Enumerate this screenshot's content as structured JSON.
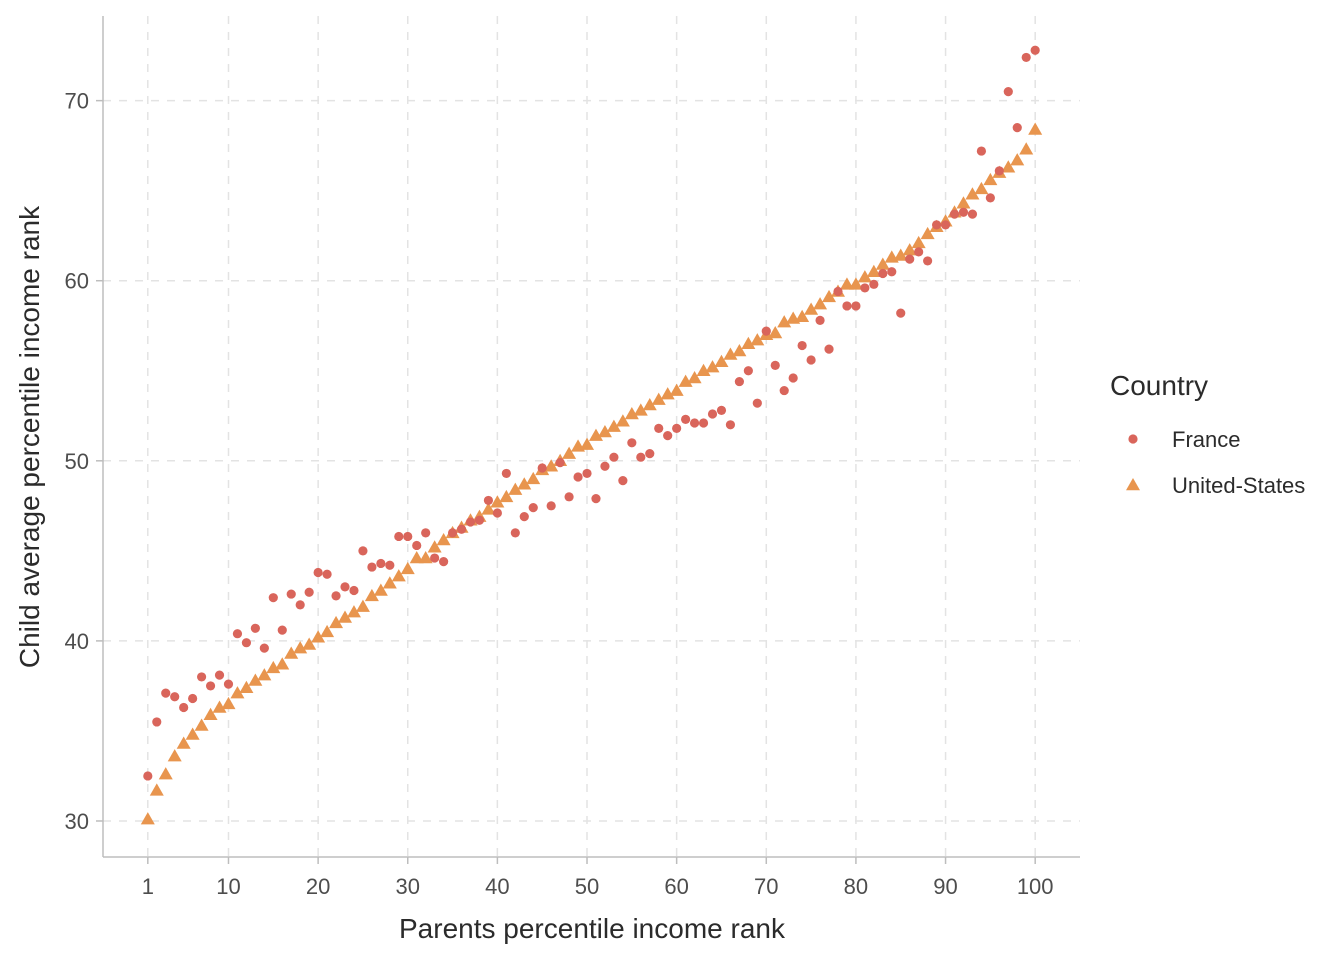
{
  "chart_data": {
    "type": "scatter",
    "title": "",
    "xlabel": "Parents percentile income rank",
    "ylabel": "Child average percentile income rank",
    "xlim": [
      -4,
      105
    ],
    "ylim": [
      28,
      74.7
    ],
    "x_ticks": [
      1,
      10,
      20,
      30,
      40,
      50,
      60,
      70,
      80,
      90,
      100
    ],
    "y_ticks": [
      30,
      40,
      50,
      60,
      70
    ],
    "grid": true,
    "legend": {
      "title": "Country",
      "position": "right"
    },
    "series": [
      {
        "name": "France",
        "marker": "circle",
        "color": "#D9655B",
        "x": [
          1,
          2,
          3,
          4,
          5,
          6,
          7,
          8,
          9,
          10,
          11,
          12,
          13,
          14,
          15,
          16,
          17,
          18,
          19,
          20,
          21,
          22,
          23,
          24,
          25,
          26,
          27,
          28,
          29,
          30,
          31,
          32,
          33,
          34,
          35,
          36,
          37,
          38,
          39,
          40,
          41,
          42,
          43,
          44,
          45,
          46,
          47,
          48,
          49,
          50,
          51,
          52,
          53,
          54,
          55,
          56,
          57,
          58,
          59,
          60,
          61,
          62,
          63,
          64,
          65,
          66,
          67,
          68,
          69,
          70,
          71,
          72,
          73,
          74,
          75,
          76,
          77,
          78,
          79,
          80,
          81,
          82,
          83,
          84,
          85,
          86,
          87,
          88,
          89,
          90,
          91,
          92,
          93,
          94,
          95,
          96,
          97,
          98,
          99,
          100
        ],
        "y": [
          32.5,
          35.5,
          37.1,
          36.9,
          36.3,
          36.8,
          38.0,
          37.5,
          38.1,
          37.6,
          40.4,
          39.9,
          40.7,
          39.6,
          42.4,
          40.6,
          42.6,
          42.0,
          42.7,
          43.8,
          43.7,
          42.5,
          43.0,
          42.8,
          45.0,
          44.1,
          44.3,
          44.2,
          45.8,
          45.8,
          45.3,
          46.0,
          44.6,
          44.4,
          46.0,
          46.2,
          46.6,
          46.7,
          47.8,
          47.1,
          49.3,
          46.0,
          46.9,
          47.4,
          49.6,
          47.5,
          49.9,
          48.0,
          49.1,
          49.3,
          47.9,
          49.7,
          50.2,
          48.9,
          51.0,
          50.2,
          50.4,
          51.8,
          51.4,
          51.8,
          52.3,
          52.1,
          52.1,
          52.6,
          52.8,
          52.0,
          54.4,
          55.0,
          53.2,
          57.2,
          55.3,
          53.9,
          54.6,
          56.4,
          55.6,
          57.8,
          56.2,
          59.4,
          58.6,
          58.6,
          59.6,
          59.8,
          60.4,
          60.5,
          58.2,
          61.2,
          61.6,
          61.1,
          63.1,
          63.1,
          63.7,
          63.8,
          63.7,
          67.2,
          64.6,
          66.1,
          70.5,
          68.5,
          72.4,
          72.8
        ]
      },
      {
        "name": "United-States",
        "marker": "triangle",
        "color": "#E8954E",
        "x": [
          1,
          2,
          3,
          4,
          5,
          6,
          7,
          8,
          9,
          10,
          11,
          12,
          13,
          14,
          15,
          16,
          17,
          18,
          19,
          20,
          21,
          22,
          23,
          24,
          25,
          26,
          27,
          28,
          29,
          30,
          31,
          32,
          33,
          34,
          35,
          36,
          37,
          38,
          39,
          40,
          41,
          42,
          43,
          44,
          45,
          46,
          47,
          48,
          49,
          50,
          51,
          52,
          53,
          54,
          55,
          56,
          57,
          58,
          59,
          60,
          61,
          62,
          63,
          64,
          65,
          66,
          67,
          68,
          69,
          70,
          71,
          72,
          73,
          74,
          75,
          76,
          77,
          78,
          79,
          80,
          81,
          82,
          83,
          84,
          85,
          86,
          87,
          88,
          89,
          90,
          91,
          92,
          93,
          94,
          95,
          96,
          97,
          98,
          99,
          100
        ],
        "y": [
          30.1,
          31.7,
          32.6,
          33.6,
          34.3,
          34.8,
          35.3,
          35.9,
          36.3,
          36.5,
          37.1,
          37.4,
          37.8,
          38.1,
          38.5,
          38.7,
          39.3,
          39.6,
          39.8,
          40.2,
          40.5,
          41.0,
          41.3,
          41.6,
          41.9,
          42.5,
          42.8,
          43.2,
          43.6,
          44.0,
          44.6,
          44.6,
          45.2,
          45.6,
          46.0,
          46.3,
          46.7,
          46.9,
          47.3,
          47.7,
          48.0,
          48.4,
          48.7,
          49.0,
          49.5,
          49.7,
          50.0,
          50.4,
          50.8,
          50.9,
          51.4,
          51.6,
          51.9,
          52.2,
          52.6,
          52.8,
          53.1,
          53.4,
          53.7,
          53.9,
          54.4,
          54.6,
          55.0,
          55.2,
          55.5,
          55.9,
          56.1,
          56.5,
          56.7,
          57.0,
          57.1,
          57.7,
          57.9,
          58.0,
          58.4,
          58.7,
          59.1,
          59.4,
          59.8,
          59.8,
          60.2,
          60.5,
          60.9,
          61.3,
          61.4,
          61.7,
          62.1,
          62.6,
          63.0,
          63.3,
          63.8,
          64.3,
          64.8,
          65.1,
          65.6,
          66.0,
          66.3,
          66.7,
          67.3,
          68.4
        ]
      }
    ]
  }
}
